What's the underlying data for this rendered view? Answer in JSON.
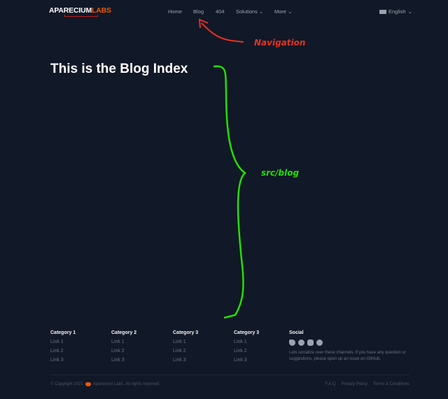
{
  "logo": {
    "part1": "APARECIUM",
    "part2": "LABS"
  },
  "nav": {
    "items": [
      "Home",
      "Blog",
      "404",
      "Solutions",
      "More"
    ],
    "language": "English"
  },
  "page": {
    "title": "This is the Blog Index"
  },
  "annotations": {
    "navigation": "Navigation",
    "src": "src/blog",
    "nav_color": "#e53222",
    "src_color": "#22e000"
  },
  "footer": {
    "columns": [
      {
        "title": "Category 1",
        "links": [
          "Link 1",
          "Link 2",
          "Link 3"
        ]
      },
      {
        "title": "Category 2",
        "links": [
          "Link 1",
          "Link 2",
          "Link 3"
        ]
      },
      {
        "title": "Category 3",
        "links": [
          "Link 1",
          "Link 2",
          "Link 3"
        ]
      },
      {
        "title": "Category 3",
        "links": [
          "Link 1",
          "Link 2",
          "Link 3"
        ]
      }
    ],
    "social": {
      "title": "Social",
      "icons": [
        "twitter-icon",
        "facebook-icon",
        "instagram-icon",
        "github-icon"
      ],
      "text": "Lets socialize over these channels. If you have any question or suggestions, please open up an issue on GitHub."
    },
    "copyright": "© Copyright 2021",
    "company": "Aparecium Labs. All rights reserved.",
    "legal": [
      "F.A.Q",
      "Privacy Policy",
      "Terms & Conditions"
    ]
  }
}
